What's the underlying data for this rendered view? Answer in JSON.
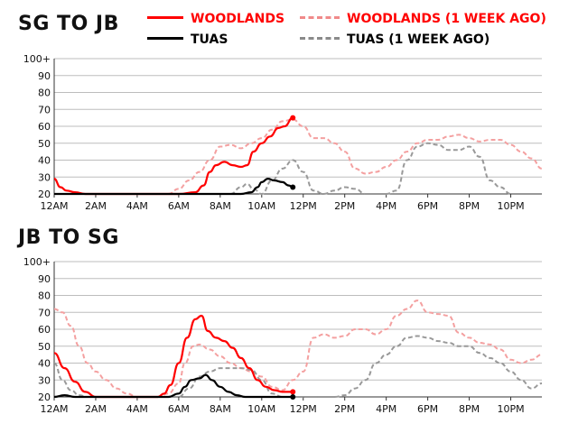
{
  "colors": {
    "woodlands": "#ff0000",
    "tuas": "#000000",
    "woodlands_week_ago": "#f4a0a0",
    "tuas_week_ago": "#999999"
  },
  "legend": {
    "woodlands": "WOODLANDS",
    "tuas": "TUAS",
    "woodlands_week_ago": "WOODLANDS (1 WEEK AGO)",
    "tuas_week_ago": "TUAS (1 WEEK AGO)"
  },
  "chart_data": [
    {
      "type": "line",
      "title": "SG TO JB",
      "x_tick_labels": [
        "12AM",
        "2AM",
        "4AM",
        "6AM",
        "8AM",
        "10AM",
        "12PM",
        "2PM",
        "4PM",
        "6PM",
        "8PM",
        "10PM"
      ],
      "y_tick_labels": [
        "20",
        "30",
        "40",
        "50",
        "60",
        "70",
        "80",
        "90",
        "100+"
      ],
      "ylim": [
        20,
        100
      ],
      "xlim": [
        0,
        23.5
      ],
      "grid": true,
      "series": [
        {
          "name": "WOODLANDS",
          "color": "#ff0000",
          "dashed": false,
          "end_marker": true,
          "x": [
            0,
            0.3,
            0.6,
            1,
            1.5,
            2,
            4,
            6,
            6.8,
            7.2,
            7.5,
            7.8,
            8.2,
            8.6,
            9,
            9.3,
            9.6,
            10,
            10.4,
            10.8,
            11.1,
            11.5
          ],
          "y": [
            29,
            24,
            22,
            21,
            20,
            20,
            20,
            20,
            21,
            25,
            33,
            37,
            39,
            37,
            36,
            37,
            45,
            50,
            54,
            59,
            60,
            65
          ]
        },
        {
          "name": "TUAS",
          "color": "#000000",
          "dashed": false,
          "end_marker": true,
          "x": [
            0,
            8.5,
            9,
            9.5,
            9.8,
            10,
            10.3,
            10.6,
            11,
            11.3,
            11.5
          ],
          "y": [
            20,
            20,
            20,
            21,
            24,
            27,
            29,
            28,
            27,
            25,
            24
          ]
        },
        {
          "name": "WOODLANDS (1 WEEK AGO)",
          "color": "#f4a0a0",
          "dashed": true,
          "end_marker": false,
          "x": [
            5.5,
            6,
            6.5,
            7,
            7.5,
            8,
            8.5,
            9,
            9.5,
            10,
            10.5,
            11,
            11.5,
            12,
            12.5,
            13,
            13.5,
            14,
            14.5,
            15,
            15.5,
            16,
            16.5,
            17,
            17.5,
            18,
            18.5,
            19,
            19.5,
            20,
            20.5,
            21,
            21.5,
            22,
            22.5,
            23,
            23.5
          ],
          "y": [
            20,
            23,
            28,
            33,
            40,
            48,
            49,
            47,
            50,
            53,
            58,
            63,
            64,
            60,
            53,
            53,
            50,
            45,
            35,
            32,
            33,
            36,
            40,
            45,
            50,
            52,
            52,
            54,
            55,
            53,
            51,
            52,
            52,
            49,
            45,
            41,
            35
          ]
        },
        {
          "name": "TUAS (1 WEEK AGO)",
          "color": "#999999",
          "dashed": true,
          "end_marker": false,
          "x": [
            8.5,
            9,
            9.3,
            9.6,
            10,
            10.5,
            11,
            11.5,
            12,
            12.5,
            13,
            13.5,
            14,
            14.5,
            15,
            15.5,
            16,
            16.5,
            17,
            17.5,
            18,
            18.5,
            19,
            19.5,
            20,
            20.5,
            21,
            21.5,
            22,
            22.5,
            23
          ],
          "y": [
            20,
            24,
            26,
            23,
            20,
            28,
            35,
            40,
            33,
            22,
            20,
            22,
            24,
            23,
            20,
            20,
            20,
            22,
            40,
            48,
            50,
            49,
            46,
            46,
            48,
            42,
            28,
            24,
            20,
            20,
            20
          ]
        }
      ]
    },
    {
      "type": "line",
      "title": "JB TO SG",
      "x_tick_labels": [
        "12AM",
        "2AM",
        "4AM",
        "6AM",
        "8AM",
        "10AM",
        "12PM",
        "2PM",
        "4PM",
        "6PM",
        "8PM",
        "10PM"
      ],
      "y_tick_labels": [
        "20",
        "30",
        "40",
        "50",
        "60",
        "70",
        "80",
        "90",
        "100+"
      ],
      "ylim": [
        20,
        100
      ],
      "xlim": [
        0,
        23.5
      ],
      "grid": true,
      "series": [
        {
          "name": "WOODLANDS",
          "color": "#ff0000",
          "dashed": false,
          "end_marker": true,
          "x": [
            0,
            0.5,
            1,
            1.5,
            2,
            3,
            4,
            5,
            5.3,
            5.6,
            6,
            6.4,
            6.8,
            7.1,
            7.4,
            7.8,
            8.2,
            8.6,
            9,
            9.4,
            9.8,
            10.2,
            10.6,
            11,
            11.5
          ],
          "y": [
            46,
            37,
            29,
            23,
            20,
            20,
            20,
            20,
            22,
            27,
            40,
            55,
            66,
            68,
            59,
            55,
            53,
            49,
            43,
            37,
            30,
            26,
            24,
            23,
            23
          ]
        },
        {
          "name": "TUAS",
          "color": "#000000",
          "dashed": false,
          "end_marker": true,
          "x": [
            0,
            0.5,
            1,
            2,
            4,
            5.5,
            6,
            6.3,
            6.6,
            7,
            7.3,
            7.6,
            8,
            8.4,
            8.8,
            9.2,
            9.6,
            10,
            11,
            11.5
          ],
          "y": [
            20,
            21,
            20,
            20,
            20,
            20,
            22,
            26,
            30,
            31,
            33,
            30,
            26,
            23,
            21,
            20,
            20,
            20,
            20,
            20
          ]
        },
        {
          "name": "WOODLANDS (1 WEEK AGO)",
          "color": "#f4a0a0",
          "dashed": true,
          "end_marker": false,
          "x": [
            0,
            0.4,
            0.8,
            1.2,
            1.6,
            2,
            2.5,
            3,
            3.5,
            4,
            4.5,
            5,
            5.5,
            6,
            6.3,
            6.7,
            7,
            7.5,
            8,
            8.5,
            9,
            9.5,
            10,
            10.5,
            11,
            11.5,
            12,
            12.5,
            13,
            13.5,
            14,
            14.5,
            15,
            15.5,
            16,
            16.5,
            17,
            17.5,
            18,
            18.5,
            19,
            19.5,
            20,
            20.5,
            21,
            21.5,
            22,
            22.5,
            23,
            23.5
          ],
          "y": [
            72,
            70,
            62,
            50,
            40,
            35,
            30,
            25,
            22,
            20,
            20,
            20,
            22,
            28,
            40,
            50,
            51,
            48,
            44,
            40,
            37,
            35,
            32,
            26,
            24,
            30,
            35,
            55,
            57,
            55,
            56,
            60,
            60,
            57,
            60,
            68,
            72,
            77,
            70,
            69,
            68,
            58,
            55,
            52,
            51,
            48,
            42,
            40,
            42,
            45
          ]
        },
        {
          "name": "TUAS (1 WEEK AGO)",
          "color": "#999999",
          "dashed": true,
          "end_marker": false,
          "x": [
            0,
            0.4,
            0.8,
            1.2,
            1.6,
            2,
            2.5,
            3,
            4,
            5,
            6,
            6.5,
            7,
            7.5,
            8,
            8.5,
            9,
            9.5,
            10,
            10.5,
            11,
            11.5,
            12,
            12.5,
            13,
            13.5,
            14,
            14.5,
            15,
            15.5,
            16,
            16.5,
            17,
            17.5,
            18,
            18.5,
            19,
            19.5,
            20,
            20.5,
            21,
            21.5,
            22,
            22.5,
            23,
            23.5
          ],
          "y": [
            40,
            30,
            24,
            21,
            20,
            20,
            20,
            20,
            20,
            20,
            20,
            25,
            32,
            35,
            37,
            37,
            37,
            36,
            30,
            22,
            20,
            20,
            20,
            20,
            20,
            20,
            21,
            25,
            30,
            40,
            45,
            50,
            55,
            56,
            55,
            53,
            52,
            50,
            50,
            46,
            43,
            40,
            35,
            30,
            25,
            28
          ]
        }
      ]
    }
  ]
}
